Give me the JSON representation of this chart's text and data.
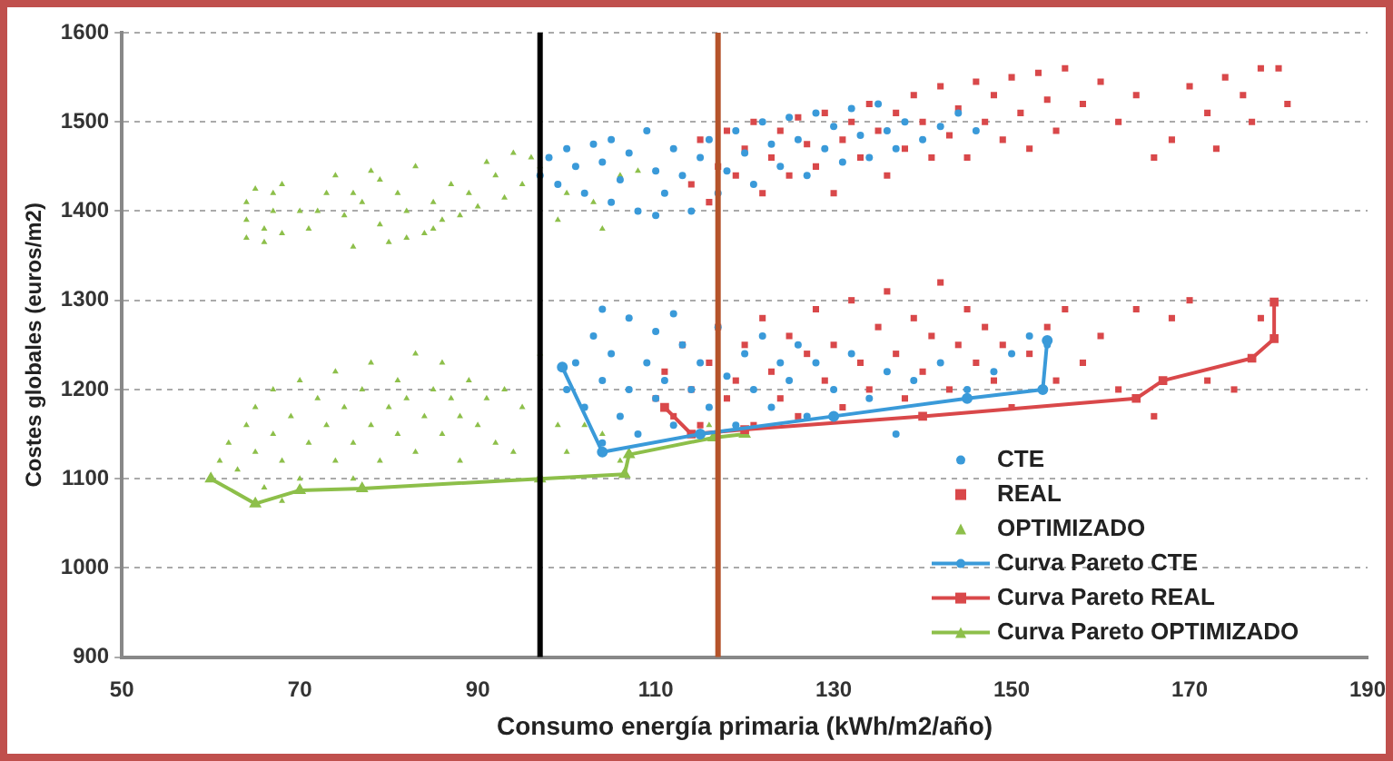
{
  "chart_data": {
    "type": "scatter",
    "xlabel": "Consumo energía primaria (kWh/m2/año)",
    "ylabel": "Costes globales (euros/m2)",
    "xlim": [
      50,
      190
    ],
    "xticks": [
      50,
      70,
      90,
      110,
      130,
      150,
      170,
      190
    ],
    "ylim": [
      900,
      1600
    ],
    "yticks": [
      900,
      1000,
      1100,
      1200,
      1300,
      1400,
      1500,
      1600
    ],
    "grid": "y",
    "legend": "bottom right",
    "ref_lines": [
      {
        "axis": "x",
        "value": 97,
        "color": "#000000"
      },
      {
        "axis": "x",
        "value": 117,
        "color": "#b5532a"
      }
    ],
    "series": [
      {
        "name": "CTE",
        "marker": "circle",
        "color": "#3a9ad9",
        "x": [
          97,
          98,
          99,
          100,
          101,
          102,
          103,
          104,
          105,
          106,
          107,
          108,
          109,
          110,
          111,
          112,
          113,
          114,
          115,
          116,
          117,
          118,
          119,
          120,
          121,
          122,
          123,
          124,
          125,
          126,
          127,
          128,
          129,
          130,
          131,
          132,
          133,
          134,
          135,
          136,
          137,
          138,
          140,
          142,
          144,
          146,
          110,
          105,
          100,
          101,
          102,
          103,
          104,
          104,
          105,
          106,
          107,
          107,
          108,
          109,
          110,
          110,
          111,
          112,
          113,
          114,
          115,
          116,
          117,
          118,
          119,
          120,
          121,
          122,
          123,
          124,
          125,
          126,
          127,
          128,
          130,
          132,
          134,
          136,
          137,
          139,
          142,
          145,
          148,
          150,
          152,
          154,
          104,
          112
        ],
        "values": [
          1440,
          1460,
          1430,
          1470,
          1450,
          1420,
          1475,
          1455,
          1480,
          1435,
          1465,
          1400,
          1490,
          1445,
          1420,
          1470,
          1440,
          1400,
          1460,
          1480,
          1420,
          1445,
          1490,
          1465,
          1430,
          1500,
          1475,
          1450,
          1505,
          1480,
          1440,
          1510,
          1470,
          1495,
          1455,
          1515,
          1485,
          1460,
          1520,
          1490,
          1470,
          1500,
          1480,
          1495,
          1510,
          1490,
          1395,
          1410,
          1200,
          1230,
          1180,
          1260,
          1140,
          1210,
          1240,
          1170,
          1280,
          1200,
          1150,
          1230,
          1190,
          1265,
          1210,
          1160,
          1250,
          1200,
          1230,
          1180,
          1270,
          1215,
          1160,
          1240,
          1200,
          1260,
          1180,
          1230,
          1210,
          1250,
          1170,
          1230,
          1200,
          1240,
          1190,
          1220,
          1150,
          1210,
          1230,
          1200,
          1220,
          1240,
          1260,
          1250,
          1290,
          1285
        ]
      },
      {
        "name": "REAL",
        "marker": "square",
        "color": "#d9484a",
        "x": [
          114,
          115,
          116,
          117,
          118,
          119,
          120,
          121,
          122,
          123,
          124,
          125,
          126,
          127,
          128,
          129,
          130,
          131,
          132,
          133,
          134,
          135,
          136,
          137,
          138,
          139,
          140,
          141,
          142,
          143,
          144,
          145,
          146,
          147,
          148,
          149,
          150,
          151,
          152,
          153,
          154,
          155,
          156,
          158,
          160,
          162,
          164,
          166,
          168,
          170,
          172,
          173,
          174,
          176,
          177,
          178,
          180,
          181,
          110,
          111,
          112,
          113,
          114,
          115,
          116,
          117,
          118,
          119,
          120,
          121,
          122,
          123,
          124,
          125,
          126,
          127,
          128,
          129,
          130,
          131,
          132,
          133,
          134,
          135,
          136,
          137,
          138,
          139,
          140,
          141,
          142,
          143,
          144,
          145,
          146,
          147,
          148,
          149,
          150,
          152,
          154,
          155,
          156,
          158,
          160,
          162,
          164,
          166,
          168,
          170,
          172,
          175,
          178
        ],
        "values": [
          1430,
          1480,
          1410,
          1450,
          1490,
          1440,
          1470,
          1500,
          1420,
          1460,
          1490,
          1440,
          1505,
          1475,
          1450,
          1510,
          1420,
          1480,
          1500,
          1460,
          1520,
          1490,
          1440,
          1510,
          1470,
          1530,
          1500,
          1460,
          1540,
          1485,
          1515,
          1460,
          1545,
          1500,
          1530,
          1480,
          1550,
          1510,
          1470,
          1555,
          1525,
          1490,
          1560,
          1520,
          1545,
          1500,
          1530,
          1460,
          1480,
          1540,
          1510,
          1470,
          1550,
          1530,
          1500,
          1560,
          1560,
          1520,
          1190,
          1220,
          1170,
          1250,
          1200,
          1160,
          1230,
          1270,
          1190,
          1210,
          1250,
          1160,
          1280,
          1220,
          1190,
          1260,
          1170,
          1240,
          1290,
          1210,
          1250,
          1180,
          1300,
          1230,
          1200,
          1270,
          1310,
          1240,
          1190,
          1280,
          1220,
          1260,
          1320,
          1200,
          1250,
          1290,
          1230,
          1270,
          1210,
          1250,
          1180,
          1240,
          1270,
          1210,
          1290,
          1230,
          1260,
          1200,
          1290,
          1170,
          1280,
          1300,
          1210,
          1200,
          1280
        ]
      },
      {
        "name": "OPTIMIZADO",
        "marker": "triangle",
        "color": "#8dbf4a",
        "x": [
          64,
          64,
          64,
          65,
          66,
          67,
          67,
          68,
          66,
          68,
          71,
          72,
          73,
          74,
          75,
          76,
          77,
          78,
          79,
          80,
          81,
          82,
          83,
          84,
          85,
          86,
          87,
          88,
          89,
          90,
          91,
          92,
          93,
          94,
          95,
          96,
          97,
          99,
          100,
          103,
          104,
          106,
          108,
          76,
          79,
          82,
          85,
          70,
          60,
          61,
          62,
          63,
          64,
          65,
          65,
          66,
          67,
          67,
          68,
          68,
          69,
          70,
          70,
          71,
          72,
          73,
          74,
          74,
          75,
          76,
          76,
          77,
          78,
          78,
          79,
          80,
          81,
          81,
          82,
          83,
          83,
          84,
          85,
          86,
          86,
          87,
          88,
          88,
          89,
          90,
          91,
          92,
          93,
          94,
          95,
          97,
          99,
          100,
          102,
          104,
          106,
          116,
          118
        ],
        "values": [
          1370,
          1390,
          1410,
          1425,
          1380,
          1400,
          1420,
          1430,
          1365,
          1375,
          1380,
          1400,
          1420,
          1440,
          1395,
          1360,
          1410,
          1445,
          1385,
          1365,
          1420,
          1400,
          1450,
          1375,
          1410,
          1390,
          1430,
          1395,
          1420,
          1405,
          1455,
          1440,
          1415,
          1465,
          1430,
          1460,
          1450,
          1390,
          1420,
          1410,
          1380,
          1440,
          1445,
          1420,
          1435,
          1370,
          1380,
          1400,
          1100,
          1120,
          1140,
          1110,
          1160,
          1130,
          1180,
          1090,
          1150,
          1200,
          1075,
          1120,
          1170,
          1100,
          1210,
          1140,
          1190,
          1160,
          1120,
          1220,
          1180,
          1140,
          1100,
          1200,
          1160,
          1230,
          1120,
          1180,
          1150,
          1210,
          1190,
          1130,
          1240,
          1170,
          1200,
          1150,
          1230,
          1190,
          1120,
          1170,
          1210,
          1160,
          1190,
          1140,
          1200,
          1130,
          1180,
          1240,
          1160,
          1130,
          1160,
          1150,
          1120,
          1160,
          1190
        ]
      },
      {
        "name": "Curva Pareto CTE",
        "type": "line",
        "marker": "circle",
        "color": "#3a9ad9",
        "x": [
          99.5,
          104,
          115,
          130,
          145,
          153.5,
          154
        ],
        "values": [
          1225,
          1130,
          1150,
          1170,
          1190,
          1200,
          1255
        ]
      },
      {
        "name": "Curva Pareto REAL",
        "type": "line",
        "marker": "square",
        "color": "#d9484a",
        "x": [
          111,
          114,
          120,
          140,
          164,
          167,
          177,
          179.5,
          179.5
        ],
        "values": [
          1180,
          1150,
          1155,
          1170,
          1190,
          1210,
          1235,
          1257,
          1298
        ]
      },
      {
        "name": "Curva Pareto OPTIMIZADO",
        "type": "line",
        "marker": "triangle",
        "color": "#8dbf4a",
        "x": [
          60,
          65,
          70,
          77,
          97,
          106.5,
          107,
          116.5,
          120
        ],
        "values": [
          1100,
          1072,
          1087,
          1089,
          1100,
          1105,
          1127,
          1146,
          1150
        ]
      }
    ]
  }
}
